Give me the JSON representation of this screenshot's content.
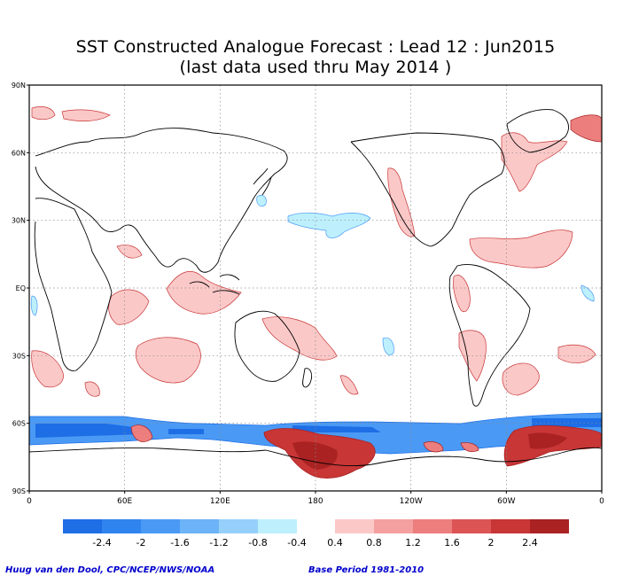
{
  "title_line1": "SST Constructed Analogue Forecast : Lead 12 : Jun2015",
  "title_line2": "(last data used thru May 2014 )",
  "credit_left": "Huug van den Dool, CPC/NCEP/NWS/NOAA",
  "credit_right": "Base Period 1981-2010",
  "chart_data": {
    "type": "heatmap",
    "title": "SST Constructed Analogue Forecast : Lead 12 : Jun2015",
    "subtitle": "(last data used thru May 2014 )",
    "x_ticks": [
      "0",
      "60E",
      "120E",
      "180",
      "120W",
      "60W",
      "0"
    ],
    "x_tick_lons": [
      0,
      60,
      120,
      180,
      240,
      300,
      360
    ],
    "y_ticks": [
      "90N",
      "60N",
      "30N",
      "EQ",
      "30S",
      "60S",
      "90S"
    ],
    "y_tick_lats": [
      90,
      60,
      30,
      0,
      -30,
      -60,
      -90
    ],
    "xlim": [
      0,
      360
    ],
    "ylim": [
      -90,
      90
    ],
    "grid": true,
    "colorbar_negative_labels": [
      "-2.4",
      "-2",
      "-1.6",
      "-1.2",
      "-0.8",
      "-0.4"
    ],
    "colorbar_positive_labels": [
      "0.4",
      "0.8",
      "1.2",
      "1.6",
      "2",
      "2.4"
    ],
    "colorbar_negative_colors": [
      "#1e6ee6",
      "#2f84ef",
      "#4a9af5",
      "#6db3f7",
      "#96d0fa",
      "#bdf0fc"
    ],
    "colorbar_positive_colors": [
      "#fbc8c8",
      "#f4a0a0",
      "#ec7e7e",
      "#dc5454",
      "#c83636",
      "#aa2222"
    ],
    "anomaly_regions": [
      {
        "name": "north-pacific-cool",
        "level": -0.6,
        "lon": [
          160,
          205
        ],
        "lat": [
          20,
          35
        ]
      },
      {
        "name": "southern-ocean-cool",
        "level": -1.2,
        "lon": [
          0,
          360
        ],
        "lat": [
          -62,
          -55
        ]
      },
      {
        "name": "ross-sea-warm",
        "level": 2.4,
        "lon": [
          155,
          225
        ],
        "lat": [
          -78,
          -65
        ]
      },
      {
        "name": "weddell-sea-warm",
        "level": 2.4,
        "lon": [
          300,
          360
        ],
        "lat": [
          -75,
          -60
        ]
      },
      {
        "name": "tropical-atlantic-warm",
        "level": 0.8,
        "lon": [
          275,
          340
        ],
        "lat": [
          10,
          25
        ]
      },
      {
        "name": "north-atlantic-warm",
        "level": 0.8,
        "lon": [
          300,
          345
        ],
        "lat": [
          40,
          68
        ]
      },
      {
        "name": "maritime-continent-warm",
        "level": 0.8,
        "lon": [
          100,
          150
        ],
        "lat": [
          -10,
          10
        ]
      },
      {
        "name": "south-pacific-warm",
        "level": 0.6,
        "lon": [
          150,
          200
        ],
        "lat": [
          -35,
          -10
        ]
      },
      {
        "name": "indian-ocean-warm",
        "level": 0.6,
        "lon": [
          50,
          120
        ],
        "lat": [
          -35,
          -5
        ]
      },
      {
        "name": "california-coast-warm",
        "level": 0.8,
        "lon": [
          225,
          245
        ],
        "lat": [
          20,
          55
        ]
      }
    ]
  }
}
